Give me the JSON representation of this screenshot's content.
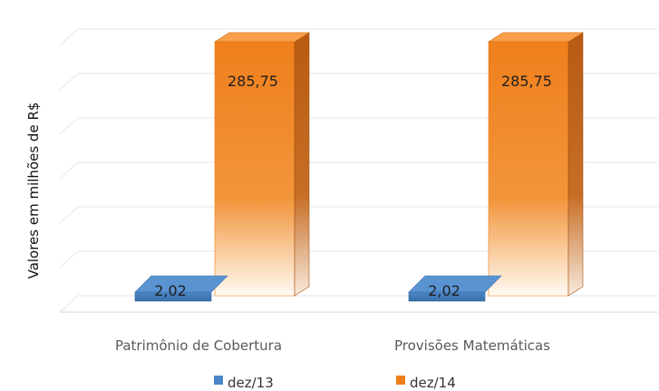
{
  "chart_data": {
    "type": "bar",
    "title": "",
    "xlabel": "",
    "ylabel": "Valores em milhões de R$",
    "categories": [
      "Patrimônio de Cobertura",
      "Provisões Matemáticas"
    ],
    "series": [
      {
        "name": "dez/13",
        "values": [
          2.02,
          2.02
        ],
        "labels": [
          "2,02",
          "2,02"
        ],
        "color": "#4a86c7"
      },
      {
        "name": "dez/14",
        "values": [
          285.75,
          285.75
        ],
        "labels": [
          "285,75",
          "285,75"
        ],
        "color": "#ef7f1c"
      }
    ],
    "ylim": [
      0,
      300
    ],
    "grid": true,
    "legend": "bottom",
    "style": "3d-column"
  }
}
